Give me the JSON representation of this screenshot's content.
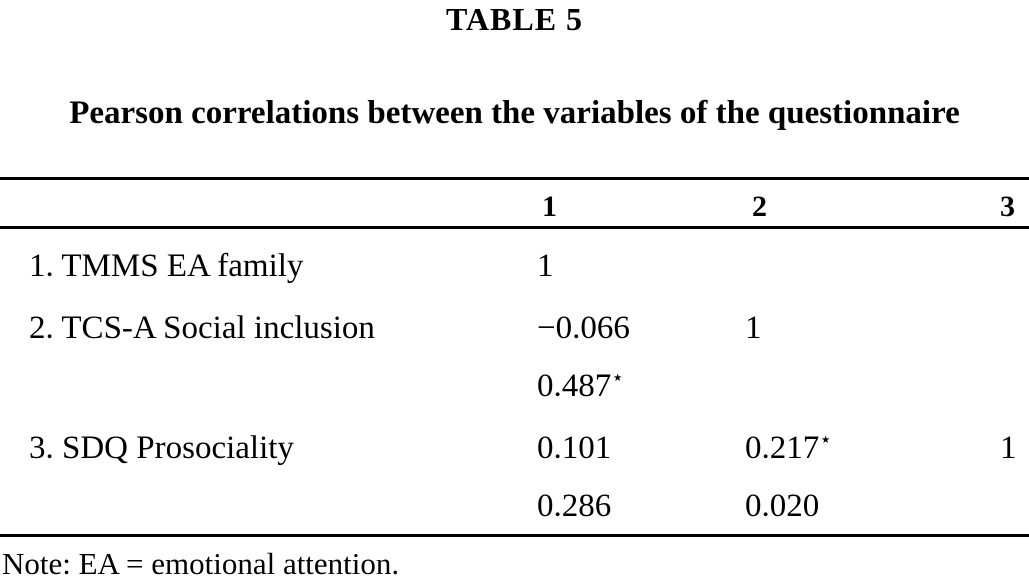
{
  "colors": {
    "text": "#000000",
    "background": "#ffffff"
  },
  "page": {
    "table_label": "TABLE 5",
    "caption": "Pearson correlations between the variables of the questionnaire"
  },
  "table": {
    "column_headers": [
      "1",
      "2",
      "3"
    ],
    "rows": [
      {
        "label": "1. TMMS EA family",
        "cells": [
          {
            "v": "1",
            "star": ""
          },
          {
            "v": "",
            "star": ""
          },
          {
            "v": "",
            "star": ""
          }
        ]
      },
      {
        "label": "2. TCS-A Social inclusion",
        "cells": [
          {
            "v": "−0.066",
            "star": ""
          },
          {
            "v": "1",
            "star": ""
          },
          {
            "v": "",
            "star": ""
          }
        ]
      },
      {
        "label": "",
        "cells": [
          {
            "v": "0.487",
            "star": "⋆"
          },
          {
            "v": "",
            "star": ""
          },
          {
            "v": "",
            "star": ""
          }
        ]
      },
      {
        "label": "3. SDQ Prosociality",
        "cells": [
          {
            "v": "0.101",
            "star": ""
          },
          {
            "v": "0.217",
            "star": "⋆"
          },
          {
            "v": "1",
            "star": ""
          }
        ]
      },
      {
        "label": "",
        "cells": [
          {
            "v": "0.286",
            "star": ""
          },
          {
            "v": "0.020",
            "star": ""
          },
          {
            "v": "",
            "star": ""
          }
        ]
      }
    ],
    "note": "Note: EA = emotional attention."
  }
}
